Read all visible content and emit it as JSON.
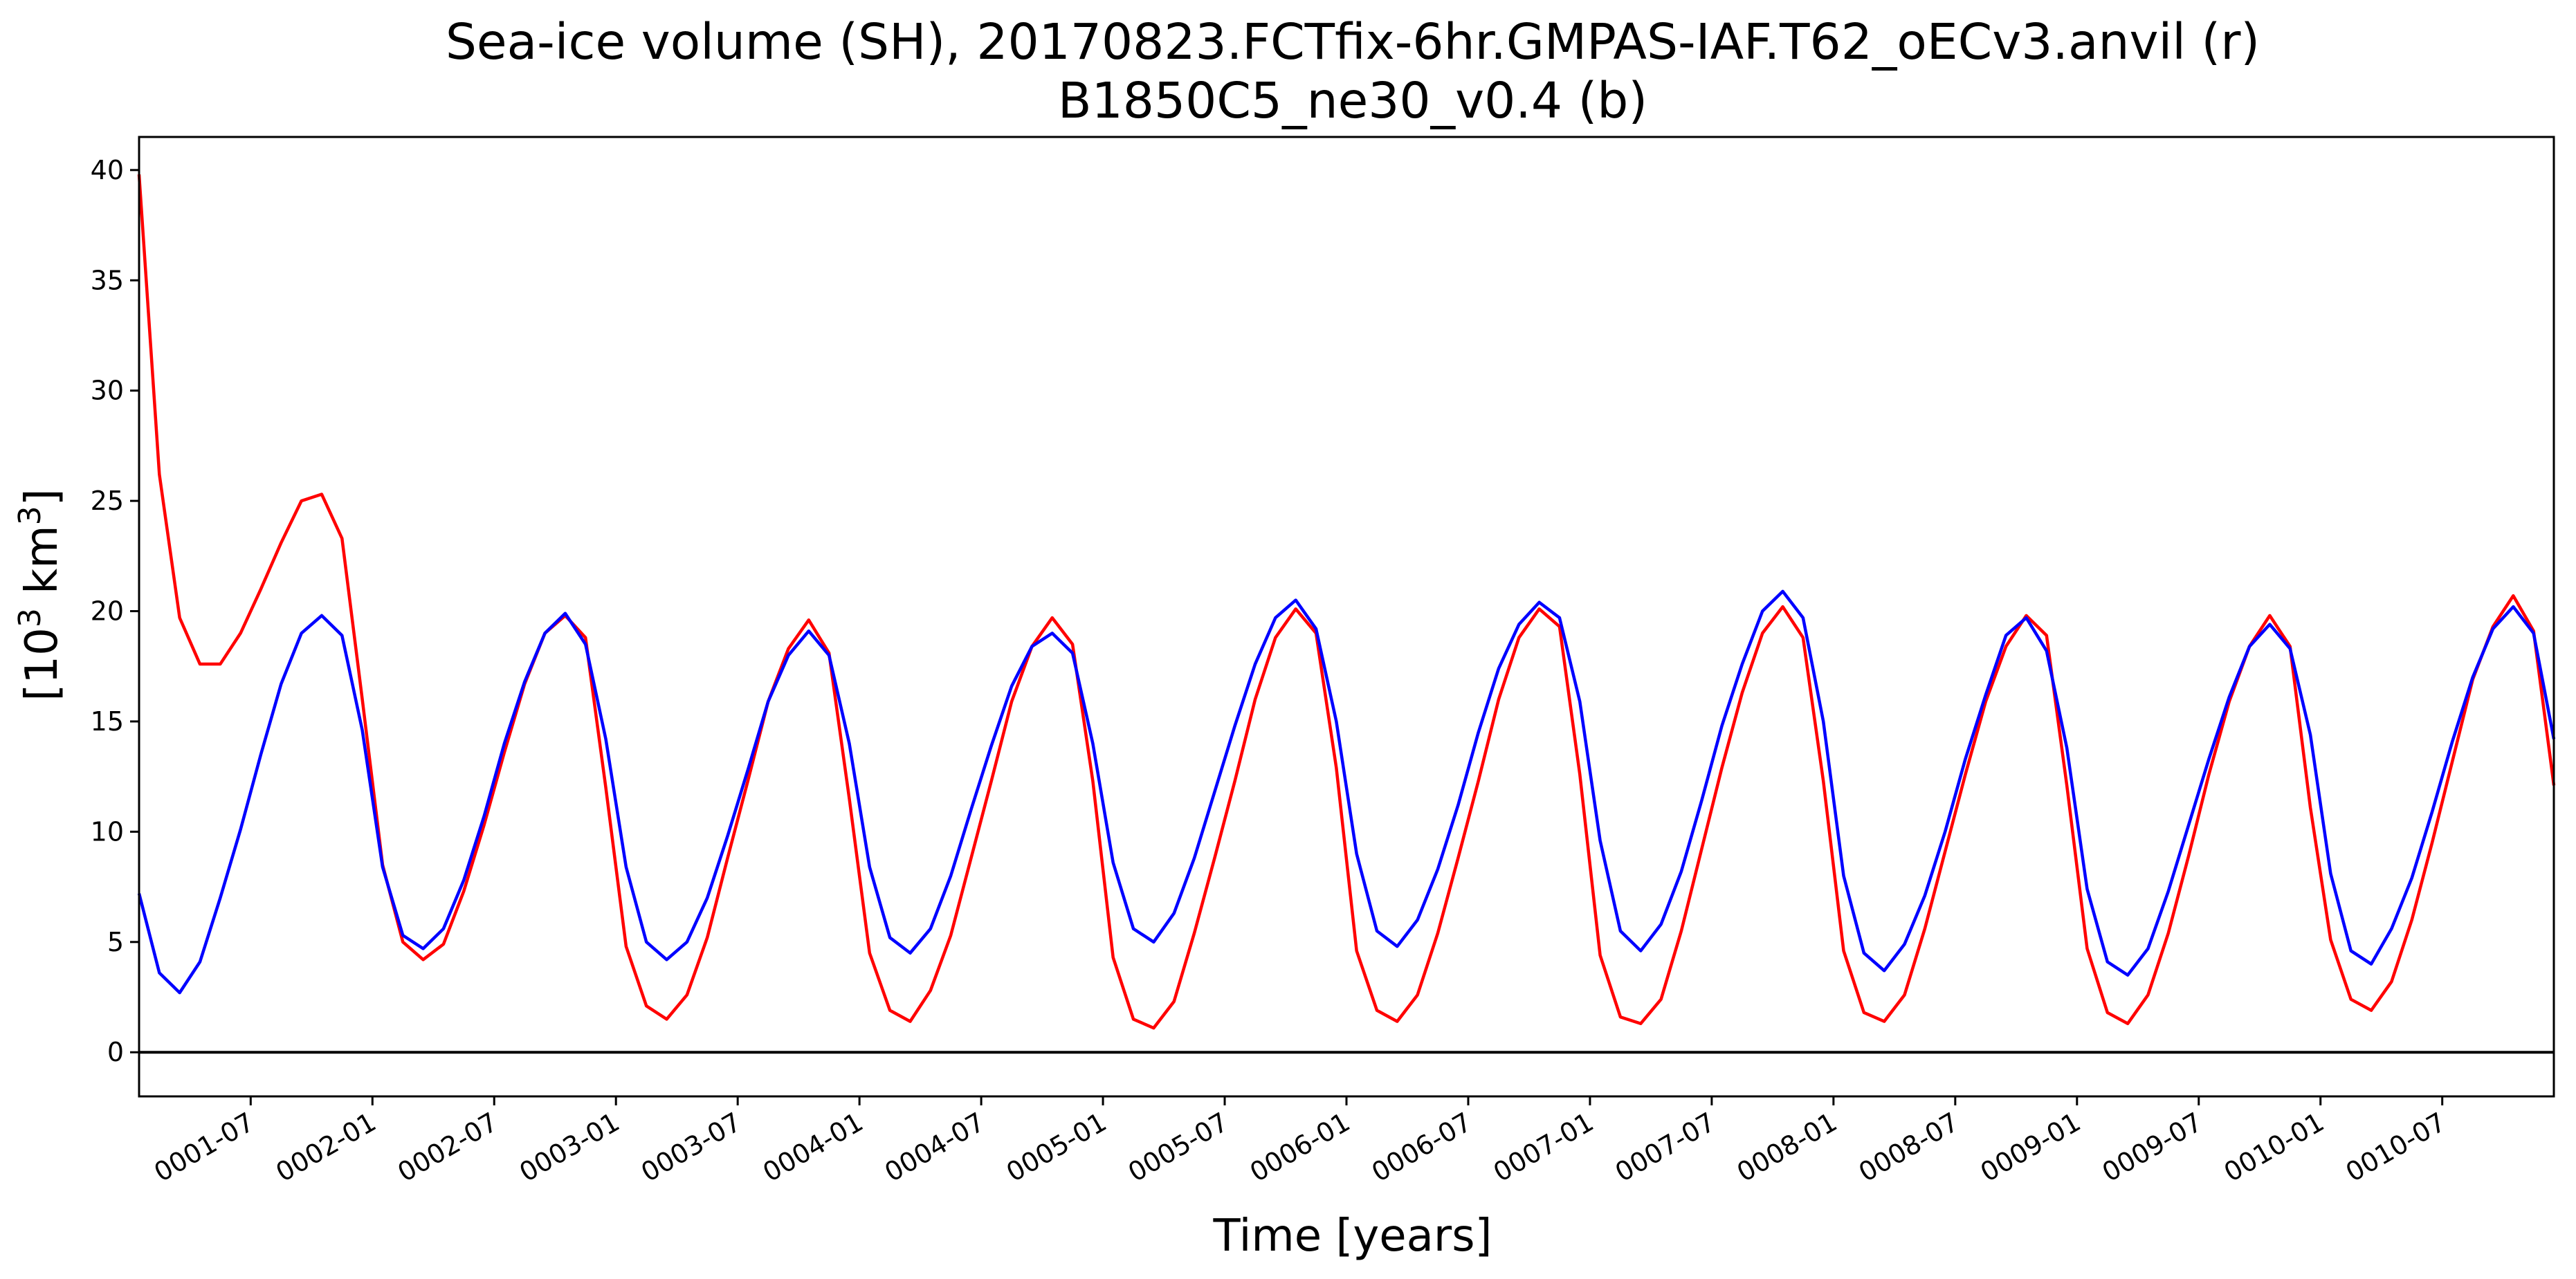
{
  "chart_data": {
    "type": "line",
    "title": "Sea-ice volume (SH), 20170823.FCTfix-6hr.GMPAS-IAF.T62_oECv3.anvil (r)",
    "subtitle": "B1850C5_ne30_v0.4 (b)",
    "xlabel": "Time [years]",
    "ylabel": {
      "prefix": "[10",
      "sup1": "3",
      "middle": " km",
      "sup2": "3",
      "suffix": "]"
    },
    "ylim": [
      -2.0,
      41.5
    ],
    "xlim": [
      0.0,
      119.0
    ],
    "grid": false,
    "zero_line": 0,
    "y_ticks": [
      0,
      5,
      10,
      15,
      20,
      25,
      30,
      35,
      40
    ],
    "x_ticks": [
      {
        "pos": 5.5,
        "label": "0001-07"
      },
      {
        "pos": 11.5,
        "label": "0002-01"
      },
      {
        "pos": 17.5,
        "label": "0002-07"
      },
      {
        "pos": 23.5,
        "label": "0003-01"
      },
      {
        "pos": 29.5,
        "label": "0003-07"
      },
      {
        "pos": 35.5,
        "label": "0004-01"
      },
      {
        "pos": 41.5,
        "label": "0004-07"
      },
      {
        "pos": 47.5,
        "label": "0005-01"
      },
      {
        "pos": 53.5,
        "label": "0005-07"
      },
      {
        "pos": 59.5,
        "label": "0006-01"
      },
      {
        "pos": 65.5,
        "label": "0006-07"
      },
      {
        "pos": 71.5,
        "label": "0007-01"
      },
      {
        "pos": 77.5,
        "label": "0007-07"
      },
      {
        "pos": 83.5,
        "label": "0008-01"
      },
      {
        "pos": 89.5,
        "label": "0008-07"
      },
      {
        "pos": 95.5,
        "label": "0009-01"
      },
      {
        "pos": 101.5,
        "label": "0009-07"
      },
      {
        "pos": 107.5,
        "label": "0010-01"
      },
      {
        "pos": 113.5,
        "label": "0010-07"
      }
    ],
    "series": [
      {
        "color": "#ff0000",
        "values": [
          39.8,
          26.2,
          19.7,
          17.6,
          17.6,
          19.0,
          21.0,
          23.1,
          25.0,
          25.3,
          23.3,
          16.0,
          8.5,
          5.0,
          4.2,
          4.9,
          7.3,
          10.3,
          13.6,
          16.7,
          19.0,
          19.8,
          18.8,
          12.0,
          4.8,
          2.1,
          1.5,
          2.6,
          5.2,
          8.8,
          12.3,
          15.9,
          18.3,
          19.6,
          18.1,
          11.5,
          4.5,
          1.9,
          1.4,
          2.8,
          5.3,
          8.8,
          12.3,
          15.9,
          18.4,
          19.7,
          18.5,
          12.3,
          4.3,
          1.5,
          1.1,
          2.3,
          5.4,
          8.8,
          12.3,
          16.0,
          18.8,
          20.1,
          19.0,
          12.9,
          4.6,
          1.9,
          1.4,
          2.6,
          5.4,
          8.8,
          12.3,
          16.0,
          18.8,
          20.1,
          19.3,
          12.6,
          4.4,
          1.6,
          1.3,
          2.4,
          5.5,
          9.2,
          12.9,
          16.3,
          19.0,
          20.2,
          18.8,
          12.3,
          4.6,
          1.8,
          1.4,
          2.6,
          5.6,
          9.1,
          12.6,
          15.9,
          18.4,
          19.8,
          18.9,
          12.1,
          4.7,
          1.8,
          1.3,
          2.6,
          5.4,
          8.9,
          12.6,
          15.9,
          18.4,
          19.8,
          18.4,
          11.1,
          5.1,
          2.4,
          1.9,
          3.2,
          6.0,
          9.5,
          13.2,
          16.9,
          19.3,
          20.7,
          19.1,
          12.1
        ]
      },
      {
        "color": "#0000ff",
        "values": [
          7.2,
          3.6,
          2.7,
          4.1,
          7.0,
          10.1,
          13.5,
          16.7,
          19.0,
          19.8,
          18.9,
          14.6,
          8.4,
          5.3,
          4.7,
          5.6,
          7.8,
          10.7,
          14.0,
          16.8,
          19.0,
          19.9,
          18.5,
          14.2,
          8.4,
          5.0,
          4.2,
          5.0,
          7.0,
          9.8,
          12.8,
          15.9,
          18.0,
          19.1,
          18.0,
          14.0,
          8.4,
          5.2,
          4.5,
          5.6,
          8.0,
          11.0,
          13.9,
          16.6,
          18.4,
          19.0,
          18.1,
          14.0,
          8.6,
          5.6,
          5.0,
          6.3,
          8.8,
          11.8,
          14.8,
          17.6,
          19.7,
          20.5,
          19.2,
          15.0,
          9.0,
          5.5,
          4.8,
          6.0,
          8.3,
          11.2,
          14.5,
          17.4,
          19.4,
          20.4,
          19.7,
          15.9,
          9.6,
          5.5,
          4.6,
          5.8,
          8.2,
          11.4,
          14.8,
          17.6,
          20.0,
          20.9,
          19.7,
          15.0,
          8.0,
          4.5,
          3.7,
          4.9,
          7.1,
          10.0,
          13.3,
          16.2,
          18.9,
          19.7,
          18.2,
          13.8,
          7.4,
          4.1,
          3.5,
          4.7,
          7.3,
          10.3,
          13.3,
          16.1,
          18.4,
          19.4,
          18.3,
          14.4,
          8.1,
          4.6,
          4.0,
          5.6,
          7.9,
          10.9,
          14.1,
          17.0,
          19.2,
          20.2,
          19.0,
          14.2
        ]
      }
    ]
  }
}
